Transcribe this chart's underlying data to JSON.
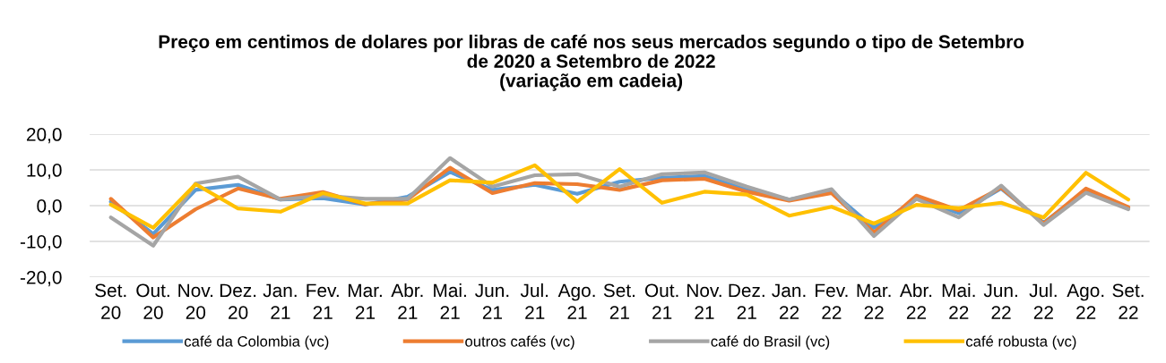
{
  "chart_data": {
    "type": "line",
    "title": "Preço em centimos de dolares por libras de café nos seus mercados segundo o tipo de Setembro\nde 2020 a Setembro de 2022\n(variação em cadeia)",
    "categories": [
      "Set.\n20",
      "Out.\n20",
      "Nov.\n20",
      "Dez.\n20",
      "Jan.\n21",
      "Fev.\n21",
      "Mar.\n21",
      "Abr.\n21",
      "Mai.\n21",
      "Jun.\n21",
      "Jul.\n21",
      "Ago.\n21",
      "Set.\n21",
      "Out.\n21",
      "Nov.\n21",
      "Dez.\n21",
      "Jan.\n22",
      "Fev.\n22",
      "Mar.\n22",
      "Abr.\n22",
      "Mai.\n22",
      "Jun.\n22",
      "Jul.\n22",
      "Ago.\n22",
      "Set.\n22"
    ],
    "series": [
      {
        "name": "café da Colombia (vc)",
        "color": "#5b9bd5",
        "values": [
          1.1,
          -7.9,
          4.4,
          5.8,
          1.7,
          2.1,
          0.3,
          2.5,
          9.4,
          4.4,
          5.8,
          3.3,
          6.7,
          7.8,
          8.3,
          4.4,
          1.7,
          3.9,
          -6.2,
          1.9,
          -2.1,
          4.8,
          -4.8,
          4.2,
          -0.6
        ]
      },
      {
        "name": "outros cafés (vc)",
        "color": "#ed7d31",
        "values": [
          1.9,
          -8.9,
          -1.0,
          4.8,
          1.9,
          3.8,
          0.4,
          1.7,
          10.6,
          3.5,
          6.3,
          6.0,
          4.4,
          7.1,
          7.5,
          3.9,
          1.4,
          3.5,
          -7.5,
          2.8,
          -1.3,
          5.0,
          -5.0,
          4.8,
          -0.4
        ]
      },
      {
        "name": "café do Brasil (vc)",
        "color": "#a5a5a5",
        "values": [
          -3.3,
          -11.2,
          6.2,
          8.1,
          1.7,
          2.8,
          1.9,
          1.9,
          13.3,
          5.3,
          8.5,
          8.8,
          5.3,
          8.8,
          9.3,
          5.3,
          1.7,
          4.6,
          -8.5,
          1.9,
          -3.3,
          5.6,
          -5.4,
          3.6,
          -1.0
        ]
      },
      {
        "name": "café robusta (vc)",
        "color": "#ffc000",
        "values": [
          0.3,
          -6.2,
          6.0,
          -0.8,
          -1.7,
          3.5,
          0.6,
          0.6,
          7.1,
          6.4,
          11.3,
          1.1,
          10.2,
          0.8,
          3.9,
          3.1,
          -2.8,
          -0.3,
          -5.0,
          0.2,
          -0.7,
          0.8,
          -3.3,
          9.2,
          1.7
        ]
      }
    ],
    "ylim": [
      -20,
      20
    ],
    "yticks": [
      {
        "value": -20,
        "label": "-20,0"
      },
      {
        "value": -10,
        "label": "-10,0"
      },
      {
        "value": 0,
        "label": "0,0"
      },
      {
        "value": 10,
        "label": "10,0"
      },
      {
        "value": 20,
        "label": "20,0"
      }
    ],
    "grid": "y",
    "legend": "bottom"
  }
}
